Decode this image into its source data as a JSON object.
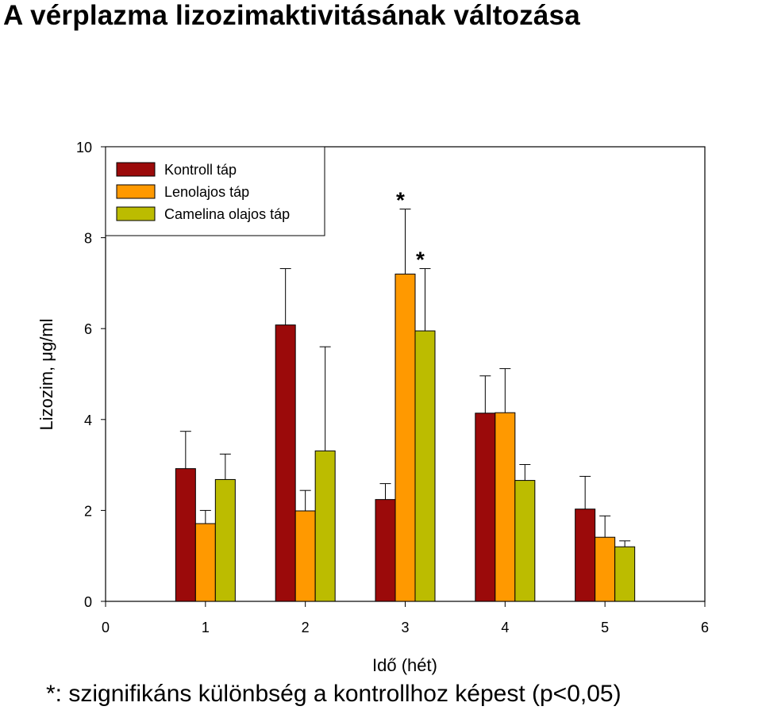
{
  "title": "A vérplazma lizozimaktivitásának változása",
  "footnote": "*: szignifikáns különbség a kontrollhoz képest (p<0,05)",
  "chart_data": {
    "type": "bar",
    "title": "",
    "xlabel": "Idő (hét)",
    "ylabel": "Lizozim, μg/ml",
    "xlim": [
      0,
      6
    ],
    "ylim": [
      0,
      10
    ],
    "x_ticks": [
      0,
      1,
      2,
      3,
      4,
      5,
      6
    ],
    "y_ticks": [
      0,
      2,
      4,
      6,
      8,
      10
    ],
    "categories": [
      1,
      2,
      3,
      4,
      5
    ],
    "legend_position": "top-left",
    "grid": false,
    "series": [
      {
        "name": "Kontroll táp",
        "color": "#9b0a0a",
        "values": [
          2.92,
          6.08,
          2.24,
          4.14,
          2.03
        ],
        "errors": [
          0.82,
          1.24,
          0.35,
          0.82,
          0.72
        ]
      },
      {
        "name": "Lenolajos táp",
        "color": "#ff9900",
        "values": [
          1.71,
          1.99,
          7.2,
          4.15,
          1.41
        ],
        "errors": [
          0.29,
          0.45,
          1.43,
          0.97,
          0.47
        ]
      },
      {
        "name": "Camelina olajos táp",
        "color": "#bcbc00",
        "values": [
          2.68,
          3.31,
          5.95,
          2.66,
          1.2
        ],
        "errors": [
          0.56,
          2.29,
          1.37,
          0.35,
          0.13
        ]
      }
    ],
    "annotations": [
      {
        "text": "*",
        "category": 3,
        "series": 1
      },
      {
        "text": "*",
        "category": 3,
        "series": 2
      }
    ]
  }
}
